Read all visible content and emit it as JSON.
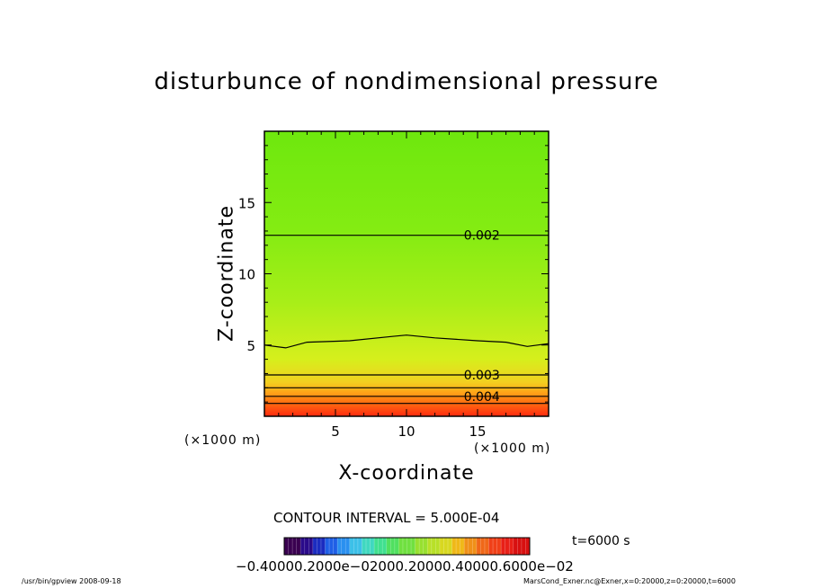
{
  "chart_data": {
    "type": "contour",
    "title": "disturbunce of nondimensional pressure",
    "xlabel": "X-coordinate",
    "ylabel": "Z-coordinate",
    "x_unit": "(×1000 m)",
    "y_unit": "(×1000 m)",
    "xlim": [
      0,
      20
    ],
    "ylim": [
      0,
      20
    ],
    "x_ticks": [
      5,
      10,
      15
    ],
    "y_ticks": [
      5,
      10,
      15
    ],
    "contour_interval_text": "CONTOUR INTERVAL = 5.000E-04",
    "contour_lines": [
      {
        "level": 0.002,
        "label": "0.002",
        "z": [
          12.7,
          12.7
        ]
      },
      {
        "level": 0.0025,
        "label": "",
        "z_profile": [
          [
            0,
            5.0
          ],
          [
            1.5,
            4.8
          ],
          [
            3,
            5.2
          ],
          [
            6,
            5.3
          ],
          [
            9,
            5.6
          ],
          [
            10,
            5.7
          ],
          [
            12,
            5.5
          ],
          [
            15,
            5.3
          ],
          [
            17,
            5.2
          ],
          [
            18.5,
            4.9
          ],
          [
            20,
            5.1
          ]
        ]
      },
      {
        "level": 0.003,
        "label": "0.003",
        "z": [
          2.9,
          2.9
        ]
      },
      {
        "level": 0.0035,
        "label": "",
        "z": [
          2.0,
          2.0
        ]
      },
      {
        "level": 0.004,
        "label": "0.004",
        "z": [
          1.4,
          1.4
        ]
      },
      {
        "level": 0.0045,
        "label": "",
        "z": [
          0.9,
          0.9
        ]
      }
    ],
    "colorbar": {
      "labels_text": "−0.40000.2000e−02000.20000.40000.6000e−02",
      "colors": [
        "#3a0050",
        "#2a0a8a",
        "#1b2cc0",
        "#1f5fe6",
        "#2a90f0",
        "#3cc0e8",
        "#40d8c0",
        "#40e090",
        "#50e060",
        "#70e040",
        "#98e030",
        "#b8e028",
        "#d8d820",
        "#f0b818",
        "#f09018",
        "#f06818",
        "#f04018",
        "#e82018",
        "#d81010"
      ]
    },
    "time_text": "t=6000 s"
  },
  "footer": {
    "left": "/usr/bin/gpview   2008-09-18",
    "right": "MarsCond_Exner.nc@Exner,x=0:20000,z=0:20000,t=6000"
  }
}
